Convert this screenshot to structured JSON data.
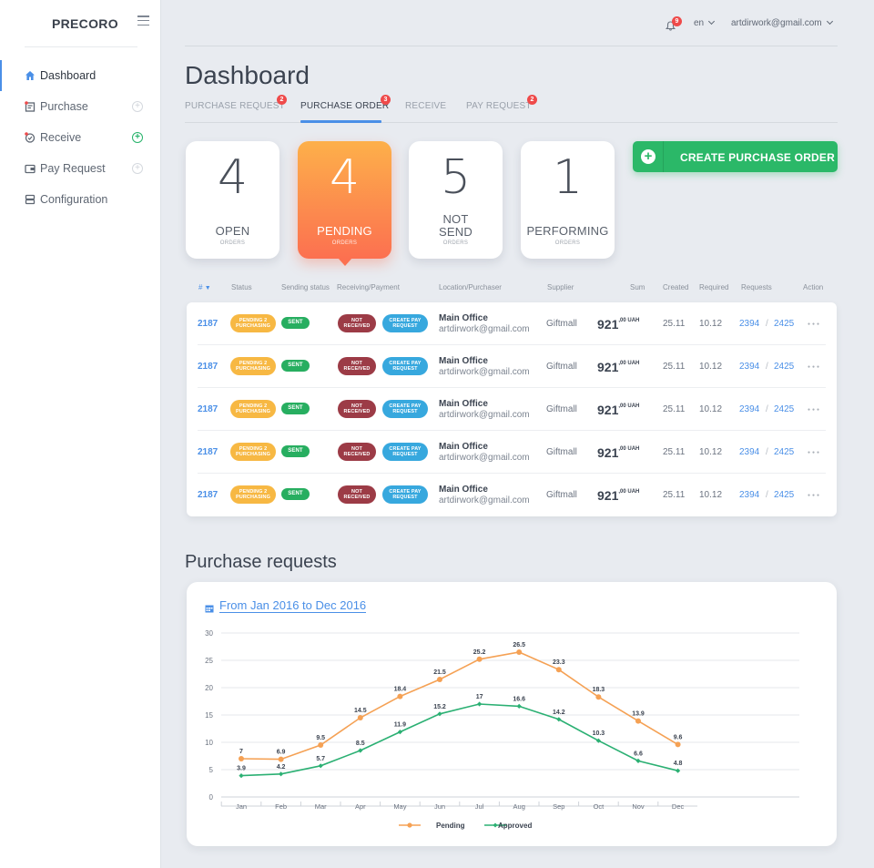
{
  "app": {
    "brand": "PRECORO"
  },
  "sidebar": {
    "items": [
      {
        "label": "Dashboard",
        "icon": "home-icon",
        "active": true
      },
      {
        "label": "Purchase",
        "icon": "purchase-icon"
      },
      {
        "label": "Receive",
        "icon": "receive-icon"
      },
      {
        "label": "Pay Request",
        "icon": "wallet-icon"
      },
      {
        "label": "Configuration",
        "icon": "server-icon"
      }
    ]
  },
  "topbar": {
    "notifications": "9",
    "language": "en",
    "user": "artdirwork@gmail.com"
  },
  "page": {
    "title": "Dashboard"
  },
  "tabs": [
    {
      "label": "PURCHASE REQUEST",
      "badge": "2"
    },
    {
      "label": "PURCHASE ORDER",
      "badge": "3",
      "active": true
    },
    {
      "label": "RECEIVE",
      "badge": ""
    },
    {
      "label": "PAY REQUEST",
      "badge": "2"
    }
  ],
  "stats": [
    {
      "value": "4",
      "label": "OPEN",
      "sub": "ORDERS"
    },
    {
      "value": "4",
      "label": "PENDING",
      "sub": "ORDERS"
    },
    {
      "value": "5",
      "label": "NOT SEND",
      "sub": "ORDERS"
    },
    {
      "value": "1",
      "label": "PERFORMING",
      "sub": "ORDERS"
    }
  ],
  "create_button": {
    "label": "CREATE PURCHASE ORDER"
  },
  "table": {
    "headers": [
      "#",
      "Status",
      "Sending status",
      "Receiving/Payment",
      "Location/Purchaser",
      "Supplier",
      "Sum",
      "Created",
      "Required",
      "Requests",
      "Action"
    ],
    "rows": [
      {
        "id": "2187",
        "status": "PENDING 2 PURCHASING",
        "sending": "SENT",
        "receiving": "NOT RECEIVED",
        "payment": "CREATE PAY REQUEST",
        "location": "Main Office",
        "purchaser": "artdirwork@gmail.com",
        "supplier": "Giftmall",
        "sum_int": "921",
        "sum_dec": ",00 UAH",
        "created": "25.11",
        "required": "10.12",
        "req1": "2394",
        "req2": "2425"
      },
      {
        "id": "2187",
        "status": "PENDING 2 PURCHASING",
        "sending": "SENT",
        "receiving": "NOT RECEIVED",
        "payment": "CREATE PAY REQUEST",
        "location": "Main Office",
        "purchaser": "artdirwork@gmail.com",
        "supplier": "Giftmall",
        "sum_int": "921",
        "sum_dec": ",00 UAH",
        "created": "25.11",
        "required": "10.12",
        "req1": "2394",
        "req2": "2425"
      },
      {
        "id": "2187",
        "status": "PENDING 2 PURCHASING",
        "sending": "SENT",
        "receiving": "NOT RECEIVED",
        "payment": "CREATE PAY REQUEST",
        "location": "Main Office",
        "purchaser": "artdirwork@gmail.com",
        "supplier": "Giftmall",
        "sum_int": "921",
        "sum_dec": ",00 UAH",
        "created": "25.11",
        "required": "10.12",
        "req1": "2394",
        "req2": "2425"
      },
      {
        "id": "2187",
        "status": "PENDING 2 PURCHASING",
        "sending": "SENT",
        "receiving": "NOT RECEIVED",
        "payment": "CREATE PAY REQUEST",
        "location": "Main Office",
        "purchaser": "artdirwork@gmail.com",
        "supplier": "Giftmall",
        "sum_int": "921",
        "sum_dec": ",00 UAH",
        "created": "25.11",
        "required": "10.12",
        "req1": "2394",
        "req2": "2425"
      },
      {
        "id": "2187",
        "status": "PENDING 2 PURCHASING",
        "sending": "SENT",
        "receiving": "NOT RECEIVED",
        "payment": "CREATE PAY REQUEST",
        "location": "Main Office",
        "purchaser": "artdirwork@gmail.com",
        "supplier": "Giftmall",
        "sum_int": "921",
        "sum_dec": ",00 UAH",
        "created": "25.11",
        "required": "10.12",
        "req1": "2394",
        "req2": "2425"
      }
    ]
  },
  "chart_section": {
    "title": "Purchase requests",
    "date_range": "From Jan 2016 to Dec 2016"
  },
  "colors": {
    "accent": "#4a8fe7",
    "pending": "#f5a154",
    "approved": "#2bb073",
    "create": "#2bb868"
  },
  "chart_data": {
    "type": "line",
    "categories": [
      "Jan",
      "Feb",
      "Mar",
      "Apr",
      "May",
      "Jun",
      "Jul",
      "Aug",
      "Sep",
      "Oct",
      "Nov",
      "Dec"
    ],
    "series": [
      {
        "name": "Pending",
        "values": [
          7,
          6.9,
          9.5,
          14.5,
          18.4,
          21.5,
          25.2,
          26.5,
          23.3,
          18.3,
          13.9,
          9.6
        ],
        "color": "#f5a154"
      },
      {
        "name": "Approved",
        "values": [
          3.9,
          4.2,
          5.7,
          8.5,
          11.9,
          15.2,
          17,
          16.6,
          14.2,
          10.3,
          6.6,
          4.8
        ],
        "color": "#2bb073"
      }
    ],
    "yticks": [
      "0",
      "5",
      "10",
      "15",
      "20",
      "25",
      "30"
    ],
    "ylim": [
      0,
      30
    ],
    "grid": true,
    "legend": "bottom"
  }
}
